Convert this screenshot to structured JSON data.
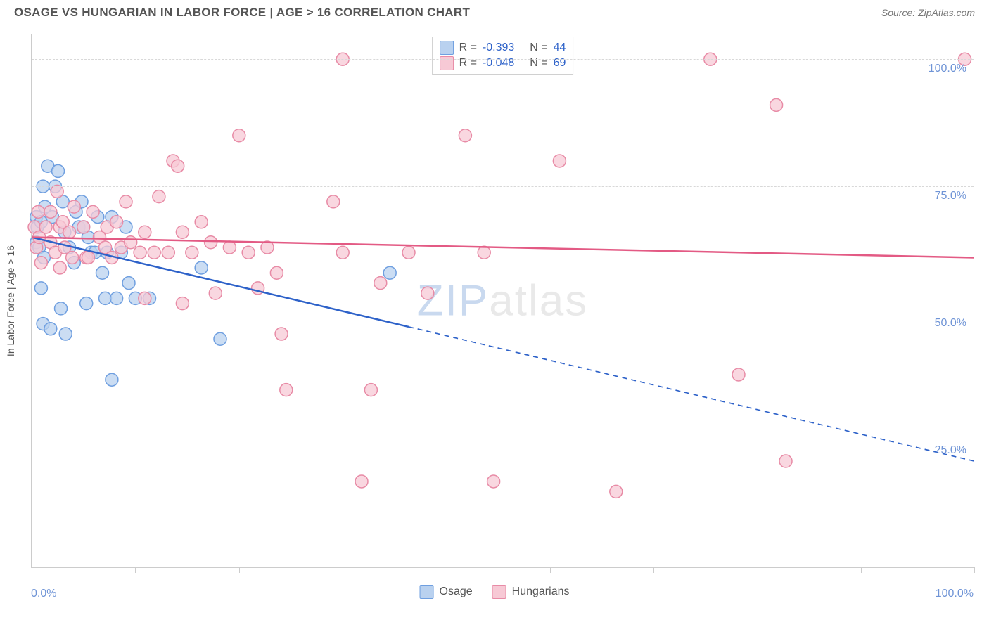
{
  "header": {
    "title": "OSAGE VS HUNGARIAN IN LABOR FORCE | AGE > 16 CORRELATION CHART",
    "source": "Source: ZipAtlas.com"
  },
  "chart": {
    "type": "scatter",
    "ylabel": "In Labor Force | Age > 16",
    "watermark_zip": "ZIP",
    "watermark_atlas": "atlas",
    "background_color": "#ffffff",
    "grid_color": "#d8d8d8",
    "axis_color": "#cccccc",
    "tick_label_color": "#6f94d6",
    "xlim": [
      0,
      100
    ],
    "ylim": [
      0,
      105
    ],
    "ytick_values": [
      25,
      50,
      75,
      100
    ],
    "ytick_labels": [
      "25.0%",
      "50.0%",
      "75.0%",
      "100.0%"
    ],
    "xtick_values": [
      0,
      11,
      22,
      33,
      44,
      55,
      66,
      77,
      88,
      100
    ],
    "xaxis_label_left": "0.0%",
    "xaxis_label_right": "100.0%",
    "series": [
      {
        "name": "Osage",
        "marker_fill": "#b9d1ef",
        "marker_stroke": "#6f9fe0",
        "marker_opacity": 0.75,
        "marker_radius": 9,
        "line_color": "#2e62c9",
        "line_width": 2.5,
        "r_value": "-0.393",
        "n_value": "44",
        "trend": {
          "y_at_x0": 65,
          "y_at_x100": 21,
          "solid_until_x": 40
        },
        "points": [
          {
            "x": 0.5,
            "y": 64
          },
          {
            "x": 0.8,
            "y": 63
          },
          {
            "x": 0.5,
            "y": 69
          },
          {
            "x": 0.6,
            "y": 67
          },
          {
            "x": 1.0,
            "y": 55
          },
          {
            "x": 1.3,
            "y": 61
          },
          {
            "x": 1.0,
            "y": 68
          },
          {
            "x": 1.2,
            "y": 75
          },
          {
            "x": 1.7,
            "y": 79
          },
          {
            "x": 1.4,
            "y": 71
          },
          {
            "x": 1.2,
            "y": 48
          },
          {
            "x": 2.8,
            "y": 78
          },
          {
            "x": 2.0,
            "y": 47
          },
          {
            "x": 2.2,
            "y": 69
          },
          {
            "x": 2.5,
            "y": 75
          },
          {
            "x": 3.3,
            "y": 72
          },
          {
            "x": 3.1,
            "y": 51
          },
          {
            "x": 3.5,
            "y": 66
          },
          {
            "x": 3.6,
            "y": 46
          },
          {
            "x": 4.0,
            "y": 63
          },
          {
            "x": 4.5,
            "y": 60
          },
          {
            "x": 4.7,
            "y": 70
          },
          {
            "x": 5.0,
            "y": 67
          },
          {
            "x": 5.3,
            "y": 72
          },
          {
            "x": 5.5,
            "y": 67
          },
          {
            "x": 5.8,
            "y": 52
          },
          {
            "x": 6.0,
            "y": 65
          },
          {
            "x": 6.3,
            "y": 62
          },
          {
            "x": 6.7,
            "y": 62
          },
          {
            "x": 7.0,
            "y": 69
          },
          {
            "x": 7.5,
            "y": 58
          },
          {
            "x": 7.8,
            "y": 53
          },
          {
            "x": 8.0,
            "y": 62
          },
          {
            "x": 8.5,
            "y": 69
          },
          {
            "x": 9.0,
            "y": 53
          },
          {
            "x": 9.5,
            "y": 62
          },
          {
            "x": 10.0,
            "y": 67
          },
          {
            "x": 10.3,
            "y": 56
          },
          {
            "x": 11.0,
            "y": 53
          },
          {
            "x": 12.5,
            "y": 53
          },
          {
            "x": 8.5,
            "y": 37
          },
          {
            "x": 20.0,
            "y": 45
          },
          {
            "x": 38.0,
            "y": 58
          },
          {
            "x": 18.0,
            "y": 59
          }
        ]
      },
      {
        "name": "Hungarians",
        "marker_fill": "#f7c9d5",
        "marker_stroke": "#e88ba6",
        "marker_opacity": 0.75,
        "marker_radius": 9,
        "line_color": "#e35a84",
        "line_width": 2.5,
        "r_value": "-0.048",
        "n_value": "69",
        "trend": {
          "y_at_x0": 65,
          "y_at_x100": 61,
          "solid_until_x": 100
        },
        "points": [
          {
            "x": 0.3,
            "y": 67
          },
          {
            "x": 0.5,
            "y": 63
          },
          {
            "x": 0.7,
            "y": 70
          },
          {
            "x": 0.8,
            "y": 65
          },
          {
            "x": 1.0,
            "y": 60
          },
          {
            "x": 1.5,
            "y": 67
          },
          {
            "x": 2.0,
            "y": 64
          },
          {
            "x": 2.0,
            "y": 70
          },
          {
            "x": 2.5,
            "y": 62
          },
          {
            "x": 2.7,
            "y": 74
          },
          {
            "x": 3.0,
            "y": 67
          },
          {
            "x": 3.0,
            "y": 59
          },
          {
            "x": 3.3,
            "y": 68
          },
          {
            "x": 3.5,
            "y": 63
          },
          {
            "x": 4.0,
            "y": 66
          },
          {
            "x": 4.3,
            "y": 61
          },
          {
            "x": 4.5,
            "y": 71
          },
          {
            "x": 5.5,
            "y": 67
          },
          {
            "x": 5.8,
            "y": 61
          },
          {
            "x": 6.5,
            "y": 70
          },
          {
            "x": 6.0,
            "y": 61
          },
          {
            "x": 7.2,
            "y": 65
          },
          {
            "x": 7.8,
            "y": 63
          },
          {
            "x": 8.0,
            "y": 67
          },
          {
            "x": 8.5,
            "y": 61
          },
          {
            "x": 9.0,
            "y": 68
          },
          {
            "x": 9.5,
            "y": 63
          },
          {
            "x": 10.0,
            "y": 72
          },
          {
            "x": 10.5,
            "y": 64
          },
          {
            "x": 11.5,
            "y": 62
          },
          {
            "x": 12.0,
            "y": 66
          },
          {
            "x": 12.0,
            "y": 53
          },
          {
            "x": 13.0,
            "y": 62
          },
          {
            "x": 13.5,
            "y": 73
          },
          {
            "x": 14.5,
            "y": 62
          },
          {
            "x": 15.0,
            "y": 80
          },
          {
            "x": 15.5,
            "y": 79
          },
          {
            "x": 16.0,
            "y": 66
          },
          {
            "x": 16.0,
            "y": 52
          },
          {
            "x": 17.0,
            "y": 62
          },
          {
            "x": 18.0,
            "y": 68
          },
          {
            "x": 19.0,
            "y": 64
          },
          {
            "x": 19.5,
            "y": 54
          },
          {
            "x": 21.0,
            "y": 63
          },
          {
            "x": 22.0,
            "y": 85
          },
          {
            "x": 23.0,
            "y": 62
          },
          {
            "x": 24.0,
            "y": 55
          },
          {
            "x": 25.0,
            "y": 63
          },
          {
            "x": 26.0,
            "y": 58
          },
          {
            "x": 26.5,
            "y": 46
          },
          {
            "x": 27.0,
            "y": 35
          },
          {
            "x": 32.0,
            "y": 72
          },
          {
            "x": 33.0,
            "y": 62
          },
          {
            "x": 33.0,
            "y": 100
          },
          {
            "x": 35.0,
            "y": 17
          },
          {
            "x": 36.0,
            "y": 35
          },
          {
            "x": 37.0,
            "y": 56
          },
          {
            "x": 40.0,
            "y": 62
          },
          {
            "x": 42.0,
            "y": 54
          },
          {
            "x": 46.0,
            "y": 85
          },
          {
            "x": 48.0,
            "y": 62
          },
          {
            "x": 49.0,
            "y": 17
          },
          {
            "x": 56.0,
            "y": 80
          },
          {
            "x": 62.0,
            "y": 15
          },
          {
            "x": 72.0,
            "y": 100
          },
          {
            "x": 75.0,
            "y": 38
          },
          {
            "x": 79.0,
            "y": 91
          },
          {
            "x": 80.0,
            "y": 21
          },
          {
            "x": 99.0,
            "y": 100
          }
        ]
      }
    ],
    "legend_top": {
      "r_label": "R =",
      "n_label": "N ="
    },
    "legend_bottom": {
      "label_osage": "Osage",
      "label_hungarians": "Hungarians"
    }
  }
}
